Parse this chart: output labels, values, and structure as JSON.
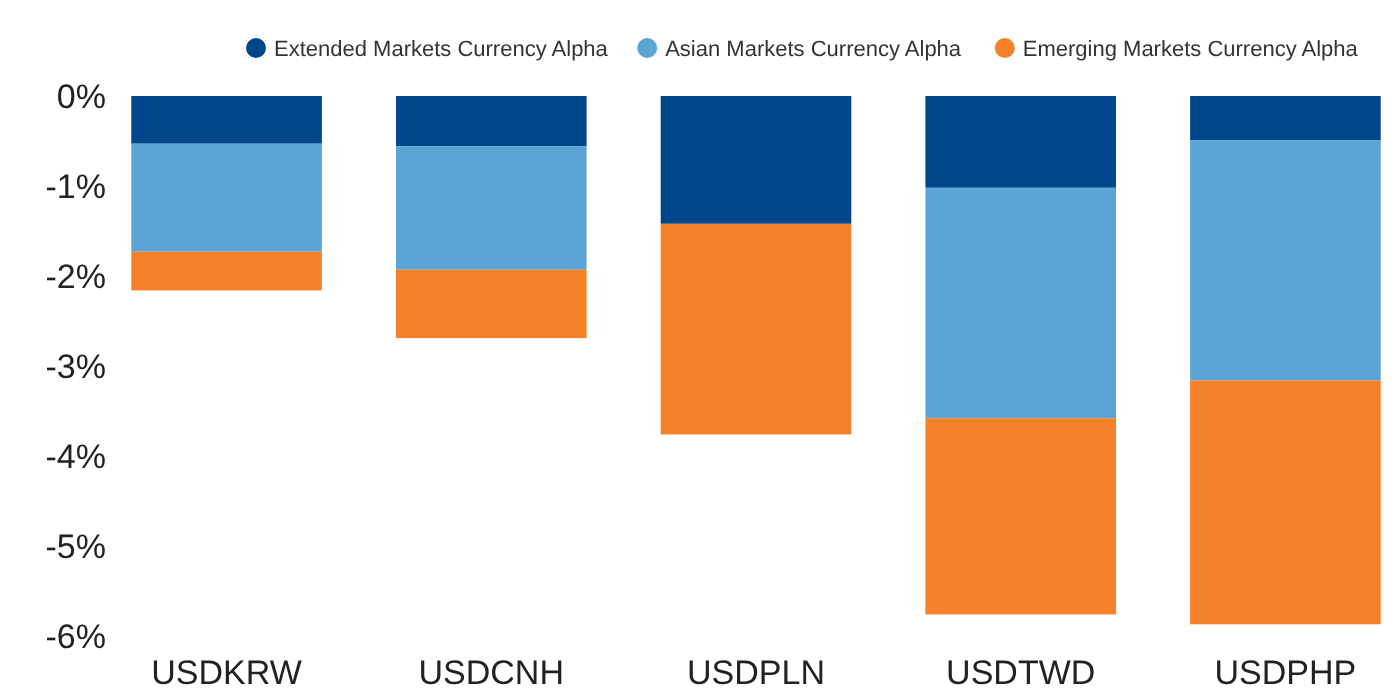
{
  "chart_data": {
    "type": "bar",
    "stacked": true,
    "categories": [
      "USDKRW",
      "USDCNH",
      "USDPLN",
      "USDTWD",
      "USDPHP"
    ],
    "series": [
      {
        "name": "Extended Markets Currency Alpha",
        "color": "#00468b",
        "values": [
          -0.53,
          -0.56,
          -1.42,
          -1.02,
          -0.49
        ]
      },
      {
        "name": "Asian Markets Currency Alpha",
        "color": "#5ba4d6",
        "values": [
          -1.2,
          -1.37,
          0,
          -2.56,
          -2.67
        ]
      },
      {
        "name": "Emerging Markets Currency Alpha",
        "color": "#f5822a",
        "values": [
          -0.43,
          -0.76,
          -2.34,
          -2.18,
          -2.71
        ]
      }
    ],
    "ylim": [
      -6,
      0
    ],
    "yticks": [
      {
        "value": 0,
        "label": "0%"
      },
      {
        "value": -1,
        "label": "-1%"
      },
      {
        "value": -2,
        "label": "-2%"
      },
      {
        "value": -3,
        "label": "-3%"
      },
      {
        "value": -4,
        "label": "-4%"
      },
      {
        "value": -5,
        "label": "-5%"
      },
      {
        "value": -6,
        "label": "-6%"
      }
    ],
    "grid": false,
    "legend": "top right"
  }
}
